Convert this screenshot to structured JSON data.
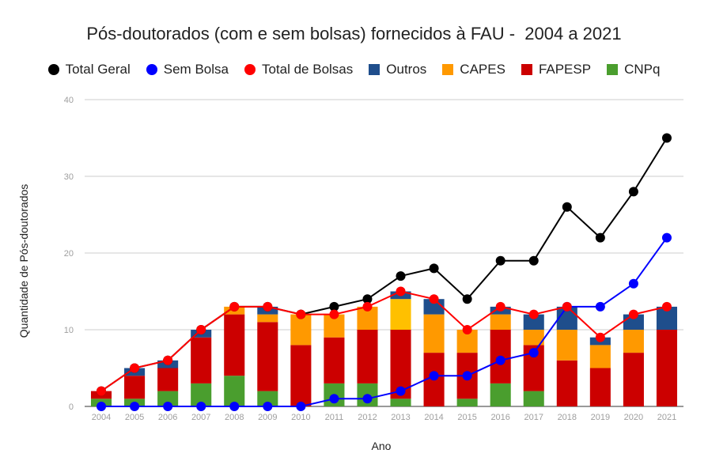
{
  "chart_data": {
    "type": "bar",
    "title": "Pós-doutorados (com e sem bolsas) fornecidos à FAU -  2004 a 2021",
    "xlabel": "Ano",
    "ylabel": "Quantidade de Pós-doutorados",
    "ylim": [
      0,
      40
    ],
    "yticks": [
      "0",
      "10",
      "20",
      "30",
      "40"
    ],
    "grid": true,
    "legend_position": "top",
    "categories": [
      "2004",
      "2005",
      "2006",
      "2007",
      "2008",
      "2009",
      "2010",
      "2011",
      "2012",
      "2013",
      "2014",
      "2015",
      "2016",
      "2017",
      "2018",
      "2019",
      "2020",
      "2021"
    ],
    "stacked_series": [
      {
        "name": "CNPq",
        "color": "#4a9e2e",
        "values": [
          1,
          1,
          2,
          3,
          4,
          2,
          0,
          3,
          3,
          1,
          0,
          1,
          3,
          2,
          0,
          0,
          0,
          0
        ]
      },
      {
        "name": "FAPESP",
        "color": "#cc0000",
        "values": [
          1,
          3,
          3,
          6,
          8,
          9,
          8,
          6,
          7,
          9,
          7,
          6,
          7,
          6,
          6,
          5,
          7,
          10
        ]
      },
      {
        "name": "CAPES",
        "color": "#ff9900",
        "values": [
          0,
          0,
          0,
          0,
          1,
          1,
          4,
          3,
          3,
          4,
          5,
          3,
          2,
          2,
          4,
          3,
          3,
          0
        ]
      },
      {
        "name": "Outros",
        "color": "#1f4e8c",
        "values": [
          0,
          1,
          1,
          1,
          0,
          1,
          0,
          0,
          0,
          1,
          2,
          0,
          1,
          2,
          3,
          1,
          2,
          3
        ]
      }
    ],
    "line_series": [
      {
        "name": "Total Geral",
        "color": "#000000",
        "values": [
          2,
          5,
          6,
          10,
          13,
          13,
          12,
          13,
          14,
          17,
          18,
          14,
          19,
          19,
          26,
          22,
          28,
          35
        ]
      },
      {
        "name": "Sem Bolsa",
        "color": "#0000ff",
        "values": [
          0,
          0,
          0,
          0,
          0,
          0,
          0,
          1,
          1,
          2,
          4,
          4,
          6,
          7,
          13,
          13,
          16,
          22
        ]
      },
      {
        "name": "Total de Bolsas",
        "color": "#ff0000",
        "values": [
          2,
          5,
          6,
          10,
          13,
          13,
          12,
          12,
          13,
          15,
          14,
          10,
          13,
          12,
          13,
          9,
          12,
          13
        ]
      }
    ],
    "legend_order": [
      {
        "name": "Total Geral",
        "color": "#000000",
        "shape": "dot"
      },
      {
        "name": "Sem Bolsa",
        "color": "#0000ff",
        "shape": "dot"
      },
      {
        "name": "Total de Bolsas",
        "color": "#ff0000",
        "shape": "dot"
      },
      {
        "name": "Outros",
        "color": "#1f4e8c",
        "shape": "square"
      },
      {
        "name": "CAPES",
        "color": "#ff9900",
        "shape": "square"
      },
      {
        "name": "FAPESP",
        "color": "#cc0000",
        "shape": "square"
      },
      {
        "name": "CNPq",
        "color": "#4a9e2e",
        "shape": "square"
      }
    ],
    "highlight": {
      "category": "2013",
      "series": "CAPES",
      "color": "#ffc000"
    }
  }
}
